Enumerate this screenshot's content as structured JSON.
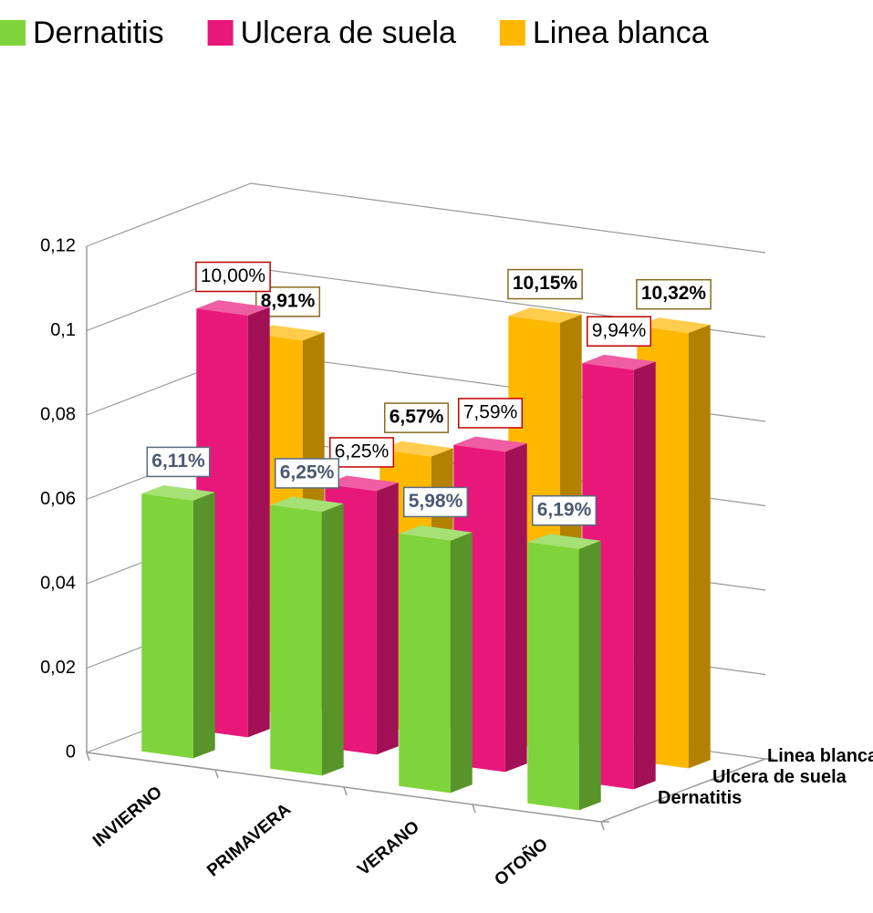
{
  "chart_data": {
    "type": "bar3d",
    "categories": [
      "INVIERNO",
      "PRIMAVERA",
      "VERANO",
      "OTOÑO"
    ],
    "series": [
      {
        "name": "Dernatitis",
        "color": "#7ed43a",
        "values": [
          0.0611,
          0.0625,
          0.0598,
          0.0619
        ],
        "value_labels": [
          "6,11%",
          "6,25%",
          "5,98%",
          "6,19%"
        ]
      },
      {
        "name": "Ulcera de suela",
        "color": "#e8177a",
        "values": [
          0.1,
          0.0625,
          0.0759,
          0.0994
        ],
        "value_labels": [
          "10,00%",
          "6,25%",
          "7,59%",
          "9,94%"
        ]
      },
      {
        "name": "Linea blanca",
        "color": "#ffb800",
        "values": [
          0.0891,
          0.0657,
          0.1015,
          0.1032
        ],
        "value_labels": [
          "8,91%",
          "6,57%",
          "10,15%",
          "10,32%"
        ]
      }
    ],
    "ylim": [
      0,
      0.12
    ],
    "yticks": [
      0,
      {
        "value": 0.02,
        "label": "0,02"
      },
      {
        "value": 0.04,
        "label": "0,04"
      },
      {
        "value": 0.06,
        "label": "0,06"
      },
      {
        "value": 0.08,
        "label": "0,08"
      },
      {
        "value": 0.1,
        "label": "0,1"
      },
      {
        "value": 0.12,
        "label": "0,12"
      }
    ],
    "grid": true,
    "legend": "top"
  }
}
